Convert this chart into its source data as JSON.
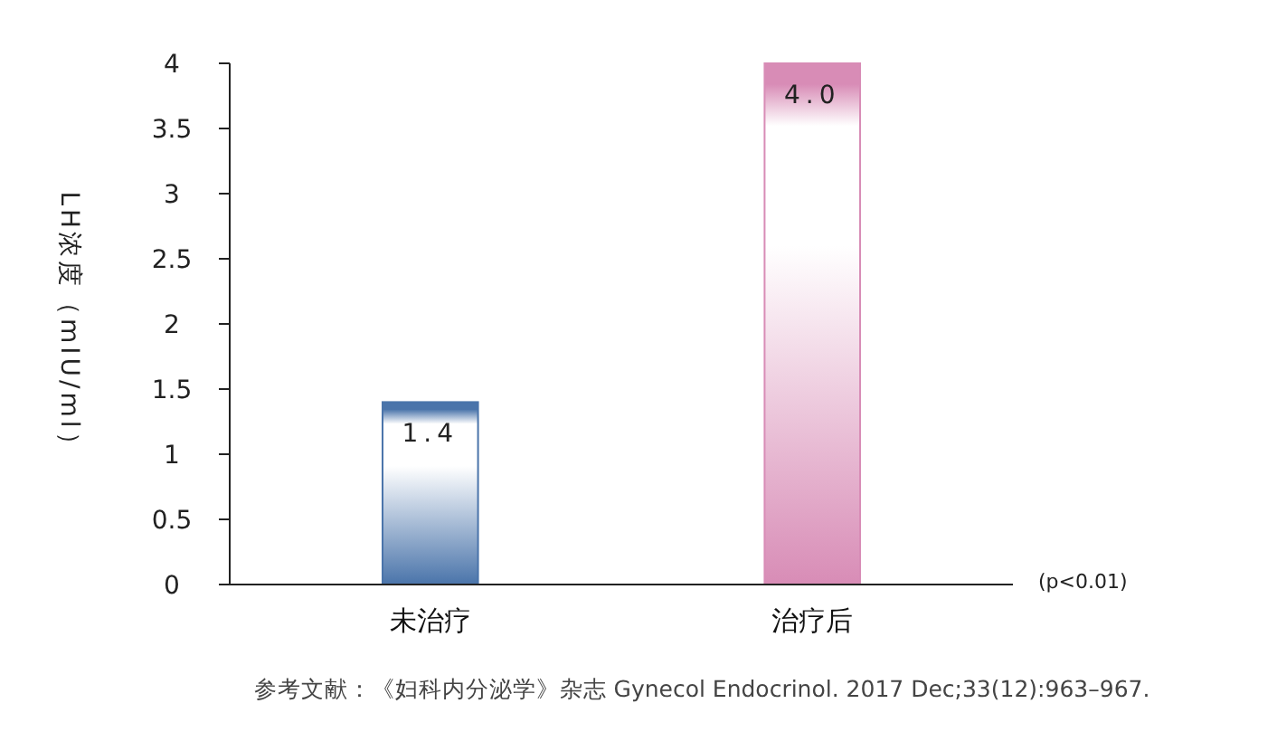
{
  "chart_data": {
    "type": "bar",
    "ylabel": "LH浓度（mIU/ml）",
    "categories": [
      "未治疗",
      "治疗后"
    ],
    "values": [
      1.4,
      4.0
    ],
    "colors": [
      "#4a74aa",
      "#d88cb6"
    ],
    "value_labels": [
      "1.4",
      "4.0"
    ],
    "ylim": [
      0,
      4
    ],
    "yticks": [
      0,
      0.5,
      1,
      1.5,
      2,
      2.5,
      3,
      3.5,
      4
    ],
    "annotations": [
      "(p<0.01)",
      "参考文献：《妇科内分泌学》杂志 Gynecol Endocrinol. 2017 Dec;33(12):963–967."
    ]
  }
}
